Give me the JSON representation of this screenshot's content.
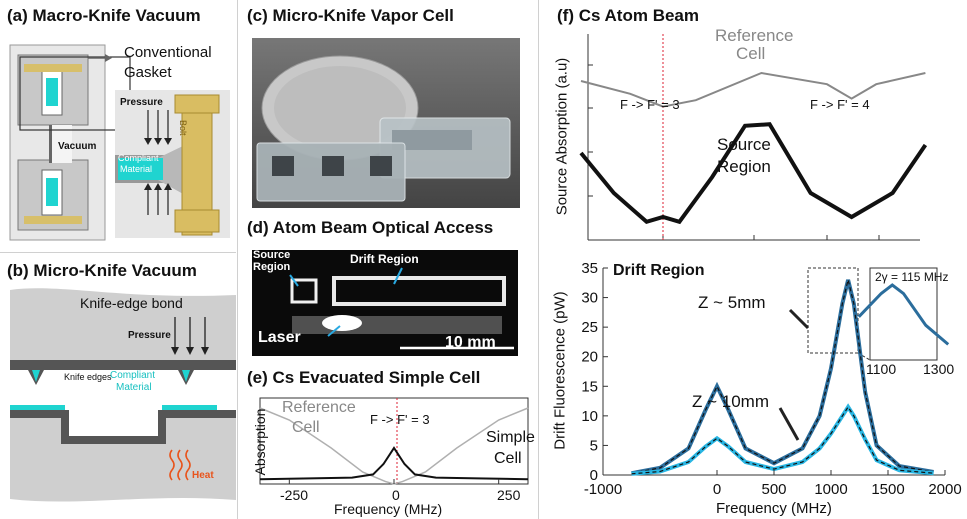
{
  "panel_a": {
    "title": "(a) Macro-Knife Vacuum",
    "gasket_label_1": "Conventional",
    "gasket_label_2": "Gasket",
    "vacuum_label": "Vacuum",
    "pressure_label": "Pressure",
    "compliant_label_1": "Compliant",
    "compliant_label_2": "Material",
    "bolt_label": "Bolt"
  },
  "panel_b": {
    "title": "(b) Micro-Knife Vacuum",
    "bond_label": "Knife-edge bond",
    "pressure_label": "Pressure",
    "knife_edges_label": "Knife edges",
    "compliant_label_1": "Compliant",
    "compliant_label_2": "Material",
    "heat_label": "Heat"
  },
  "panel_c": {
    "title": "(c) Micro-Knife Vapor Cell"
  },
  "panel_d": {
    "title": "(d) Atom Beam Optical Access",
    "source_label_1": "Source",
    "source_label_2": "Region",
    "drift_label": "Drift Region",
    "laser_label": "Laser",
    "scale_label": "10 mm"
  },
  "panel_e": {
    "title": "(e) Cs Evacuated Simple Cell",
    "reference_label_1": "Reference",
    "reference_label_2": "Cell",
    "transition_label": "F -> F' = 3",
    "simple_label_1": "Simple",
    "simple_label_2": "Cell",
    "ylabel": "Absorption",
    "xlabel": "Frequency (MHz)",
    "xticks": [
      "-250",
      "0",
      "250"
    ]
  },
  "panel_f": {
    "title": "(f) Cs Atom Beam",
    "reference_label_1": "Reference",
    "reference_label_2": "Cell",
    "transition_3": "F -> F' = 3",
    "transition_4": "F -> F' = 4",
    "source_label_1": "Source",
    "source_label_2": "Region",
    "top_ylabel": "Source Absorption (a.u)",
    "drift_title": "Drift Region",
    "z5": "Z ~ 5mm",
    "z10": "Z ~ 10mm",
    "inset_label": "2γ = 115 MHz",
    "inset_xticks": [
      "1100",
      "1300"
    ],
    "bottom_ylabel": "Drift  Fluorescence (pW)",
    "xlabel": "Frequency (MHz)",
    "xticks": [
      "-1000",
      "0",
      "500",
      "1000",
      "1500",
      "2000"
    ],
    "yticks": [
      "0",
      "5",
      "10",
      "15",
      "20",
      "25",
      "30",
      "35"
    ]
  },
  "chart_data": [
    {
      "type": "line",
      "xlabel": "Frequency (MHz)",
      "ylabel": "Absorption",
      "xlim": [
        -320,
        320
      ],
      "x_ticks": [
        -250,
        0,
        250
      ],
      "series": [
        {
          "name": "Reference Cell",
          "x": [
            -320,
            -250,
            -150,
            -75,
            -20,
            0,
            20,
            75,
            150,
            250,
            320
          ],
          "values": [
            0.95,
            0.8,
            0.45,
            0.15,
            0.03,
            0.0,
            0.03,
            0.15,
            0.45,
            0.8,
            0.95
          ]
        },
        {
          "name": "Simple Cell",
          "x": [
            -320,
            -200,
            -100,
            -50,
            -25,
            0,
            25,
            50,
            100,
            200,
            320
          ],
          "values": [
            0.06,
            0.07,
            0.08,
            0.12,
            0.25,
            0.45,
            0.25,
            0.12,
            0.08,
            0.07,
            0.06
          ]
        }
      ]
    },
    {
      "type": "line",
      "xlabel": "Frequency (MHz)",
      "ylabel": "Source Absorption (a.u)",
      "xlim": [
        -1000,
        2000
      ],
      "series": [
        {
          "name": "Reference Cell",
          "x": [
            -500,
            -200,
            0,
            200,
            600,
            1000,
            1150,
            1300,
            1600
          ],
          "values": [
            0.9,
            0.82,
            0.74,
            0.78,
            0.95,
            0.88,
            0.79,
            0.88,
            0.95
          ]
        },
        {
          "name": "Source Region",
          "x": [
            -500,
            -300,
            -100,
            0,
            100,
            300,
            500,
            650,
            900,
            1150,
            1400,
            1600
          ],
          "values": [
            0.45,
            0.2,
            0.02,
            0.05,
            0.02,
            0.3,
            0.62,
            0.63,
            0.2,
            0.05,
            0.2,
            0.5
          ]
        }
      ]
    },
    {
      "type": "line",
      "xlabel": "Frequency (MHz)",
      "ylabel": "Drift  Fluorescence (pW)",
      "xlim": [
        -1000,
        2000
      ],
      "ylim": [
        0,
        35
      ],
      "x_ticks": [
        -1000,
        0,
        500,
        1000,
        1500,
        2000
      ],
      "y_ticks": [
        0,
        5,
        10,
        15,
        20,
        25,
        30,
        35
      ],
      "series": [
        {
          "name": "Z ~ 5mm",
          "x": [
            -750,
            -500,
            -250,
            -100,
            0,
            100,
            250,
            500,
            750,
            900,
            1000,
            1100,
            1150,
            1200,
            1300,
            1400,
            1600,
            1900
          ],
          "values": [
            0.3,
            1.2,
            4.5,
            11,
            15,
            11,
            4.5,
            2,
            4.5,
            10,
            18,
            29,
            33,
            29,
            14,
            5,
            1.5,
            0.5
          ]
        },
        {
          "name": "Z ~ 10mm",
          "x": [
            -750,
            -500,
            -250,
            -100,
            0,
            100,
            250,
            500,
            750,
            900,
            1000,
            1100,
            1150,
            1200,
            1300,
            1400,
            1600,
            1900
          ],
          "values": [
            0.2,
            0.6,
            2.2,
            4.8,
            6.2,
            4.8,
            2.2,
            1,
            2.2,
            4.5,
            7,
            10,
            11.5,
            10,
            6,
            2.5,
            0.8,
            0.3
          ]
        }
      ]
    }
  ]
}
